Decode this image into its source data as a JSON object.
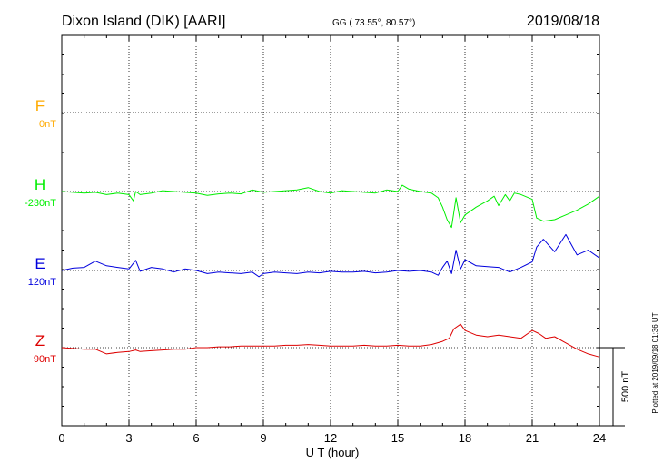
{
  "header": {
    "station": "Dixon Island (DIK)  [AARI]",
    "coords": "GG ( 73.55°,  80.57°)",
    "date": "2019/08/18"
  },
  "scale_label": "500 nT",
  "plotted_note": "Plotted at 2019/09/18 01:36 UT",
  "chart_data": {
    "type": "line",
    "title": "Dixon Island (DIK)  [AARI]",
    "xlabel": "U T (hour)",
    "ylabel": "",
    "xlim": [
      0,
      24
    ],
    "xticks": [
      0,
      3,
      6,
      9,
      12,
      15,
      18,
      21,
      24
    ],
    "xtick_labels": [
      "0",
      "3",
      "6",
      "9",
      "12",
      "15",
      "18",
      "21",
      "24"
    ],
    "grid": true,
    "scale_bar_nT": 500,
    "units": "nT",
    "series": [
      {
        "name": "F",
        "offset_label": "0nT",
        "color": "#ffaa00",
        "points": []
      },
      {
        "name": "H",
        "offset_label": "-230nT",
        "color": "#00ee00",
        "points": [
          [
            0,
            0
          ],
          [
            0.5,
            -5
          ],
          [
            1,
            -10
          ],
          [
            1.5,
            -5
          ],
          [
            2,
            -20
          ],
          [
            2.5,
            -10
          ],
          [
            3,
            -20
          ],
          [
            3.2,
            -60
          ],
          [
            3.3,
            0
          ],
          [
            3.5,
            -20
          ],
          [
            4,
            -10
          ],
          [
            4.5,
            5
          ],
          [
            5,
            0
          ],
          [
            5.5,
            -5
          ],
          [
            6,
            -10
          ],
          [
            6.5,
            -25
          ],
          [
            7,
            -15
          ],
          [
            7.5,
            -10
          ],
          [
            8,
            -15
          ],
          [
            8.5,
            10
          ],
          [
            9,
            -5
          ],
          [
            9.5,
            0
          ],
          [
            10,
            5
          ],
          [
            10.5,
            10
          ],
          [
            11,
            25
          ],
          [
            11.5,
            0
          ],
          [
            12,
            -10
          ],
          [
            12.5,
            5
          ],
          [
            13,
            0
          ],
          [
            13.5,
            -5
          ],
          [
            14,
            -10
          ],
          [
            14.5,
            10
          ],
          [
            15,
            0
          ],
          [
            15.2,
            40
          ],
          [
            15.5,
            15
          ],
          [
            16,
            0
          ],
          [
            16.5,
            -10
          ],
          [
            16.8,
            -40
          ],
          [
            17,
            -100
          ],
          [
            17.2,
            -180
          ],
          [
            17.4,
            -230
          ],
          [
            17.6,
            -40
          ],
          [
            17.8,
            -200
          ],
          [
            18,
            -150
          ],
          [
            18.5,
            -100
          ],
          [
            19,
            -60
          ],
          [
            19.3,
            -30
          ],
          [
            19.5,
            -90
          ],
          [
            19.8,
            -20
          ],
          [
            20,
            -60
          ],
          [
            20.2,
            -10
          ],
          [
            20.5,
            -20
          ],
          [
            21,
            -50
          ],
          [
            21.2,
            -170
          ],
          [
            21.5,
            -190
          ],
          [
            22,
            -180
          ],
          [
            22.5,
            -150
          ],
          [
            23,
            -120
          ],
          [
            23.5,
            -80
          ],
          [
            24,
            -30
          ]
        ]
      },
      {
        "name": "E",
        "offset_label": "120nT",
        "color": "#0000dd",
        "points": [
          [
            0,
            0
          ],
          [
            0.5,
            15
          ],
          [
            1,
            20
          ],
          [
            1.5,
            60
          ],
          [
            2,
            30
          ],
          [
            2.5,
            20
          ],
          [
            3,
            10
          ],
          [
            3.3,
            65
          ],
          [
            3.5,
            -5
          ],
          [
            4,
            20
          ],
          [
            4.5,
            10
          ],
          [
            5,
            -10
          ],
          [
            5.5,
            10
          ],
          [
            6,
            0
          ],
          [
            6.5,
            -20
          ],
          [
            7,
            -10
          ],
          [
            7.5,
            -15
          ],
          [
            8,
            -20
          ],
          [
            8.5,
            -10
          ],
          [
            8.8,
            -40
          ],
          [
            9,
            -20
          ],
          [
            9.5,
            -10
          ],
          [
            10,
            -15
          ],
          [
            10.5,
            -20
          ],
          [
            11,
            -10
          ],
          [
            11.5,
            -15
          ],
          [
            12,
            -5
          ],
          [
            12.5,
            -10
          ],
          [
            13,
            -10
          ],
          [
            13.5,
            -5
          ],
          [
            14,
            -15
          ],
          [
            14.5,
            -10
          ],
          [
            15,
            0
          ],
          [
            15.5,
            -5
          ],
          [
            16,
            0
          ],
          [
            16.5,
            -10
          ],
          [
            16.8,
            -30
          ],
          [
            17,
            20
          ],
          [
            17.2,
            60
          ],
          [
            17.4,
            -20
          ],
          [
            17.6,
            130
          ],
          [
            17.8,
            10
          ],
          [
            18,
            70
          ],
          [
            18.5,
            30
          ],
          [
            19,
            25
          ],
          [
            19.5,
            20
          ],
          [
            20,
            -10
          ],
          [
            20.5,
            20
          ],
          [
            21,
            55
          ],
          [
            21.2,
            150
          ],
          [
            21.5,
            200
          ],
          [
            22,
            120
          ],
          [
            22.5,
            230
          ],
          [
            23,
            100
          ],
          [
            23.5,
            130
          ],
          [
            24,
            80
          ]
        ]
      },
      {
        "name": "Z",
        "offset_label": "90nT",
        "color": "#dd0000",
        "points": [
          [
            0,
            0
          ],
          [
            0.5,
            -5
          ],
          [
            1,
            -10
          ],
          [
            1.5,
            -10
          ],
          [
            2,
            -40
          ],
          [
            2.5,
            -30
          ],
          [
            3,
            -25
          ],
          [
            3.3,
            -15
          ],
          [
            3.5,
            -25
          ],
          [
            4,
            -20
          ],
          [
            4.5,
            -15
          ],
          [
            5,
            -10
          ],
          [
            5.5,
            -10
          ],
          [
            6,
            0
          ],
          [
            6.5,
            0
          ],
          [
            7,
            5
          ],
          [
            7.5,
            5
          ],
          [
            8,
            10
          ],
          [
            8.5,
            10
          ],
          [
            9,
            10
          ],
          [
            9.5,
            10
          ],
          [
            10,
            15
          ],
          [
            10.5,
            15
          ],
          [
            11,
            20
          ],
          [
            11.5,
            15
          ],
          [
            12,
            10
          ],
          [
            12.5,
            10
          ],
          [
            13,
            10
          ],
          [
            13.5,
            15
          ],
          [
            14,
            10
          ],
          [
            14.5,
            10
          ],
          [
            15,
            15
          ],
          [
            15.5,
            10
          ],
          [
            16,
            10
          ],
          [
            16.5,
            20
          ],
          [
            17,
            40
          ],
          [
            17.3,
            60
          ],
          [
            17.5,
            120
          ],
          [
            17.8,
            150
          ],
          [
            18,
            110
          ],
          [
            18.5,
            80
          ],
          [
            19,
            70
          ],
          [
            19.5,
            80
          ],
          [
            20,
            70
          ],
          [
            20.5,
            60
          ],
          [
            21,
            110
          ],
          [
            21.3,
            90
          ],
          [
            21.6,
            60
          ],
          [
            22,
            70
          ],
          [
            22.5,
            30
          ],
          [
            23,
            -10
          ],
          [
            23.5,
            -40
          ],
          [
            24,
            -60
          ]
        ]
      }
    ]
  }
}
